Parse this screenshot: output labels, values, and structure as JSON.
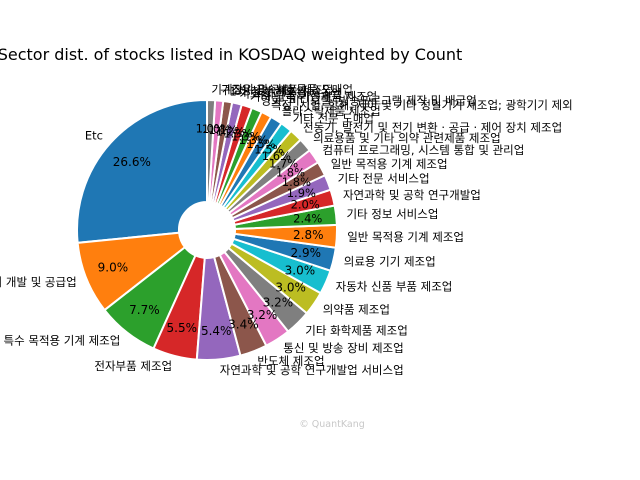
{
  "chart_data": {
    "type": "pie",
    "style": "donut",
    "title": "Sector dist. of stocks listed in KOSDAQ weighted by Count",
    "start_angle_deg": 90,
    "direction": "counterclockwise",
    "edge_color": "#ffffff",
    "slices": [
      {
        "label": "Etc",
        "value": 26.6,
        "pct_label": "26.6%",
        "color": "#1f77b4"
      },
      {
        "label": "소프트웨어 개발 및 공급업",
        "value": 9.0,
        "pct_label": "9.0%",
        "color": "#ff7f0e"
      },
      {
        "label": "특수 목적용 기계 제조업",
        "value": 7.7,
        "pct_label": "7.7%",
        "color": "#2ca02c"
      },
      {
        "label": "전자부품 제조업",
        "value": 5.5,
        "pct_label": "5.5%",
        "color": "#d62728"
      },
      {
        "label": "자연과학 및 공학 연구개발업 서비스업",
        "value": 5.4,
        "pct_label": "5.4%",
        "color": "#9467bd"
      },
      {
        "label": "반도체 제조업",
        "value": 3.4,
        "pct_label": "3.4%",
        "color": "#8c564b"
      },
      {
        "label": "통신 및 방송 장비 제조업",
        "value": 3.2,
        "pct_label": "3.2%",
        "color": "#e377c2"
      },
      {
        "label": "기타 화학제품 제조업",
        "value": 3.2,
        "pct_label": "3.2%",
        "color": "#7f7f7f"
      },
      {
        "label": "의약품 제조업",
        "value": 3.0,
        "pct_label": "3.0%",
        "color": "#bcbd22"
      },
      {
        "label": "자동차 신품 부품 제조업",
        "value": 3.0,
        "pct_label": "3.0%",
        "color": "#17becf"
      },
      {
        "label": "의료용 기기 제조업",
        "value": 2.9,
        "pct_label": "2.9%",
        "color": "#1f77b4"
      },
      {
        "label": "일반 목적용 기계 제조업",
        "value": 2.8,
        "pct_label": "2.8%",
        "color": "#ff7f0e"
      },
      {
        "label": "기타 정보 서비스업",
        "value": 2.4,
        "pct_label": "2.4%",
        "color": "#2ca02c"
      },
      {
        "label": "자연과학 및 공학 연구개발업",
        "value": 2.0,
        "pct_label": "2.0%",
        "color": "#d62728"
      },
      {
        "label": "기타 전문 서비스업",
        "value": 1.9,
        "pct_label": "1.9%",
        "color": "#9467bd"
      },
      {
        "label": "일반 목적용 기계 제조업",
        "value": 1.8,
        "pct_label": "1.8%",
        "color": "#8c564b"
      },
      {
        "label": "컴퓨터 프로그래밍, 시스템 통합 및 관리업",
        "value": 1.8,
        "pct_label": "1.8%",
        "color": "#e377c2"
      },
      {
        "label": "의료용품 및 기타 의약 관련제품 제조업",
        "value": 1.7,
        "pct_label": "1.7%",
        "color": "#7f7f7f"
      },
      {
        "label": "전동기, 발전기 및 전기 변환 · 공급 · 제어 장치 제조업",
        "value": 1.6,
        "pct_label": "1.6%",
        "color": "#bcbd22"
      },
      {
        "label": "기타 전문 도매업",
        "value": 1.5,
        "pct_label": "1.5%",
        "color": "#17becf"
      },
      {
        "label": "플라스틱제품 제조업",
        "value": 1.5,
        "pct_label": "1.5%",
        "color": "#1f77b4"
      },
      {
        "label": "측정, 시험, 항해, 제어 및 기타 정밀기기 제조업; 광학기기 제외",
        "value": 1.3,
        "pct_label": "1.3%",
        "color": "#ff7f0e"
      },
      {
        "label": "영화, 비디오물, 방송프로그램 제작 및 배급업",
        "value": 1.3,
        "pct_label": "1.3%",
        "color": "#2ca02c"
      },
      {
        "label": "기타 금속 가공제품 제조업",
        "value": 1.3,
        "pct_label": "1.3%",
        "color": "#d62728"
      },
      {
        "label": "기초 화학물질 제조업",
        "value": 1.2,
        "pct_label": "1.2%",
        "color": "#9467bd"
      },
      {
        "label": "1차 철강 제조업",
        "value": 1.1,
        "pct_label": "1.1%",
        "color": "#8c564b"
      },
      {
        "label": "구조용 금속제품 제조업",
        "value": 1.0,
        "pct_label": "1.0%",
        "color": "#e377c2"
      },
      {
        "label": "기계장비 및 관련 물품 도매업",
        "value": 1.0,
        "pct_label": "1.0%",
        "color": "#7f7f7f"
      }
    ]
  },
  "watermark": "© QuantKang"
}
